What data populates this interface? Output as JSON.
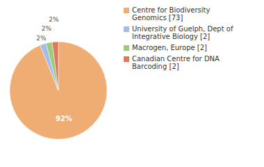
{
  "chart_data": {
    "type": "pie",
    "categories": [
      "Centre for Biodiversity Genomics [73]",
      "University of Guelph, Dept of Integrative Biology [2]",
      "Macrogen, Europe [2]",
      "Canadian Centre for DNA Barcoding [2]"
    ],
    "values": [
      92,
      2,
      2,
      2
    ],
    "value_labels": [
      "92%",
      "2%",
      "2%",
      "2%"
    ],
    "colors": [
      "#f0ad73",
      "#a4bde8",
      "#9ccb7c",
      "#e0785f"
    ],
    "data_labels": true,
    "legend": "right"
  }
}
